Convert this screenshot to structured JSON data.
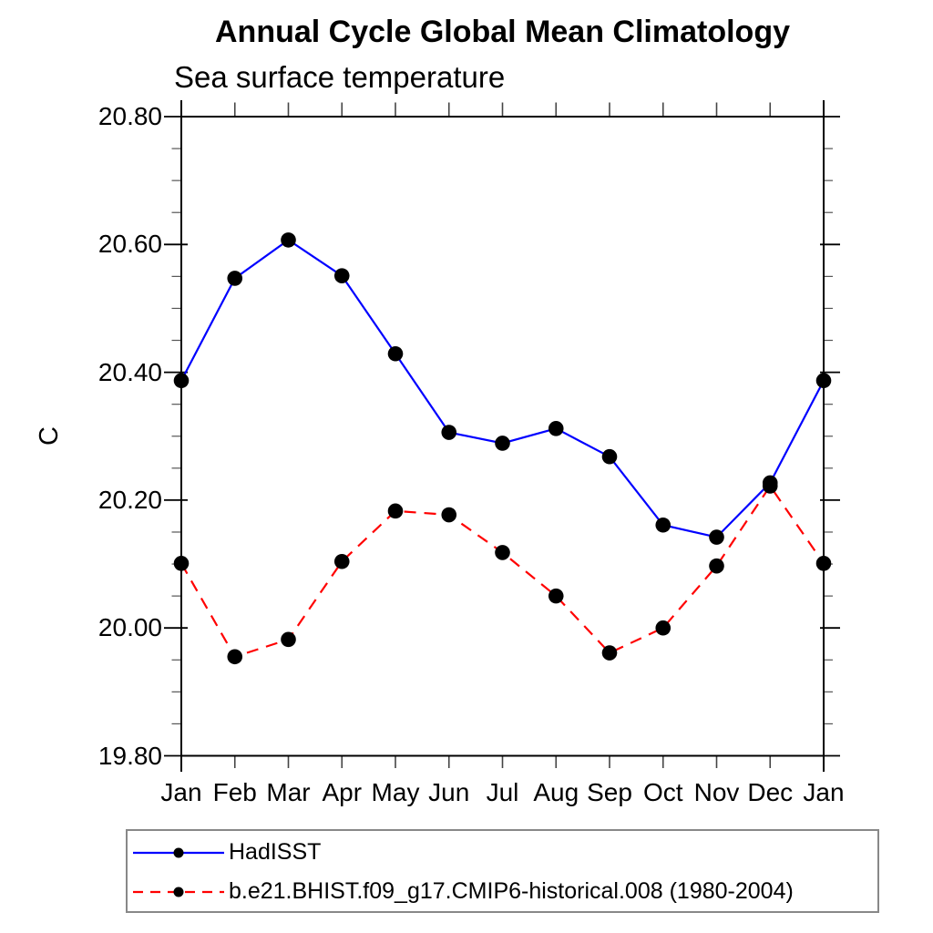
{
  "chart_data": {
    "type": "line",
    "title": "Annual Cycle Global Mean Climatology",
    "subtitle": "Sea surface temperature",
    "ylabel": "C",
    "xlabel": "",
    "grid": false,
    "legend_position": "bottom-left-box",
    "categories": [
      "Jan",
      "Feb",
      "Mar",
      "Apr",
      "May",
      "Jun",
      "Jul",
      "Aug",
      "Sep",
      "Oct",
      "Nov",
      "Dec",
      "Jan"
    ],
    "ylim": [
      19.8,
      20.8
    ],
    "y_ticks": [
      19.8,
      20.0,
      20.2,
      20.4,
      20.6,
      20.8
    ],
    "y_tick_labels": [
      "19.80",
      "20.00",
      "20.20",
      "20.40",
      "20.60",
      "20.80"
    ],
    "y_minor_step": 0.05,
    "axis_color": "#000000",
    "series": [
      {
        "name": "HadISST",
        "color": "#0000ff",
        "style": "solid",
        "marker": "filled-circle",
        "marker_color": "#000000",
        "values": [
          20.387,
          20.547,
          20.607,
          20.551,
          20.429,
          20.306,
          20.289,
          20.312,
          20.268,
          20.161,
          20.142,
          20.227,
          20.387
        ]
      },
      {
        "name": "b.e21.BHIST.f09_g17.CMIP6-historical.008 (1980-2004)",
        "color": "#ff0000",
        "style": "dashed",
        "marker": "filled-circle",
        "marker_color": "#000000",
        "values": [
          20.101,
          19.955,
          19.982,
          20.104,
          20.183,
          20.177,
          20.118,
          20.05,
          19.961,
          20.0,
          20.097,
          20.222,
          20.101
        ]
      }
    ]
  }
}
